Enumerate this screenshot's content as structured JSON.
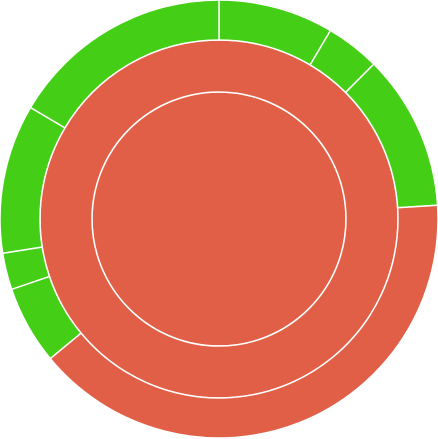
{
  "chart_data": {
    "type": "sunburst",
    "colors": {
      "red": "#e05f46",
      "green": "#44cf16",
      "separator": "#ffffff",
      "background": "#ffffff"
    },
    "rings": [
      {
        "segments": [
          {
            "value": 100,
            "color": "red"
          }
        ]
      },
      {
        "segments": [
          {
            "value": 100,
            "color": "red"
          }
        ]
      },
      {
        "segments": [
          {
            "value": 8.5,
            "color": "green"
          },
          {
            "value": 4.0,
            "color": "green"
          },
          {
            "value": 11.5,
            "color": "green"
          },
          {
            "value": 40.0,
            "color": "red"
          },
          {
            "value": 5.8,
            "color": "green"
          },
          {
            "value": 2.7,
            "color": "green"
          },
          {
            "value": 11.0,
            "color": "green"
          },
          {
            "value": 16.5,
            "color": "green"
          }
        ]
      }
    ]
  }
}
